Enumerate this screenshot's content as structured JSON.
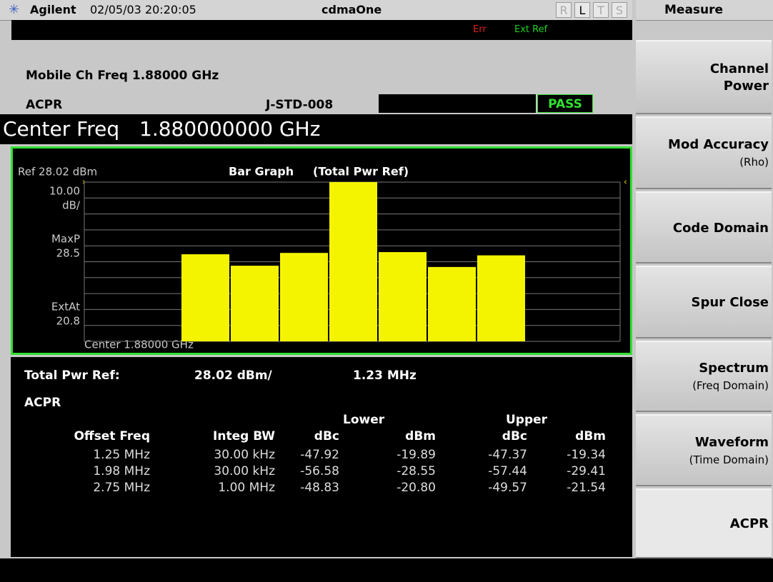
{
  "header": {
    "brand": "Agilent",
    "timestamp": "02/05/03 20:20:05",
    "mode": "cdmaOne",
    "indicators": [
      "R",
      "L",
      "T",
      "S"
    ]
  },
  "status": {
    "err": "Err",
    "ext_ref": "Ext Ref"
  },
  "info": {
    "freq": "Mobile Ch Freq 1.88000 GHz",
    "measurement": "ACPR",
    "standard": "J-STD-008",
    "result": "PASS"
  },
  "center_freq": {
    "label": "Center Freq",
    "value": "1.880000000 GHz"
  },
  "graph": {
    "ref": "Ref 28.02 dBm",
    "title": "Bar Graph",
    "subtitle": "(Total Pwr Ref)",
    "scale": [
      "10.00",
      "dB/"
    ],
    "maxp_label": "MaxP",
    "maxp": "28.5",
    "extat_label": "ExtAt",
    "extat": "20.8",
    "center": "Center 1.88000 GHz"
  },
  "results": {
    "total_label": "Total Pwr Ref:",
    "total_power": "28.02 dBm/",
    "total_bw": "1.23 MHz",
    "title": "ACPR",
    "lower": "Lower",
    "upper": "Upper",
    "columns": [
      "Offset Freq",
      "Integ BW",
      "dBc",
      "dBm",
      "dBc",
      "dBm"
    ],
    "rows": [
      [
        "1.25 MHz",
        "30.00 kHz",
        "-47.92",
        "-19.89",
        "-47.37",
        "-19.34"
      ],
      [
        "1.98 MHz",
        "30.00 kHz",
        "-56.58",
        "-28.55",
        "-57.44",
        "-29.41"
      ],
      [
        "2.75 MHz",
        "1.00 MHz",
        "-48.83",
        "-20.80",
        "-49.57",
        "-21.54"
      ]
    ]
  },
  "menu": {
    "title": "Measure",
    "keys": [
      {
        "title": [
          "Channel",
          "Power"
        ]
      },
      {
        "title": [
          "Mod Accuracy"
        ],
        "sub": "(Rho)"
      },
      {
        "title": [
          "Code Domain"
        ]
      },
      {
        "title": [
          "Spur Close"
        ]
      },
      {
        "title": [
          "Spectrum"
        ],
        "sub": "(Freq Domain)"
      },
      {
        "title": [
          "Waveform"
        ],
        "sub": "(Time Domain)"
      },
      {
        "title": [
          "ACPR"
        ]
      }
    ]
  }
}
